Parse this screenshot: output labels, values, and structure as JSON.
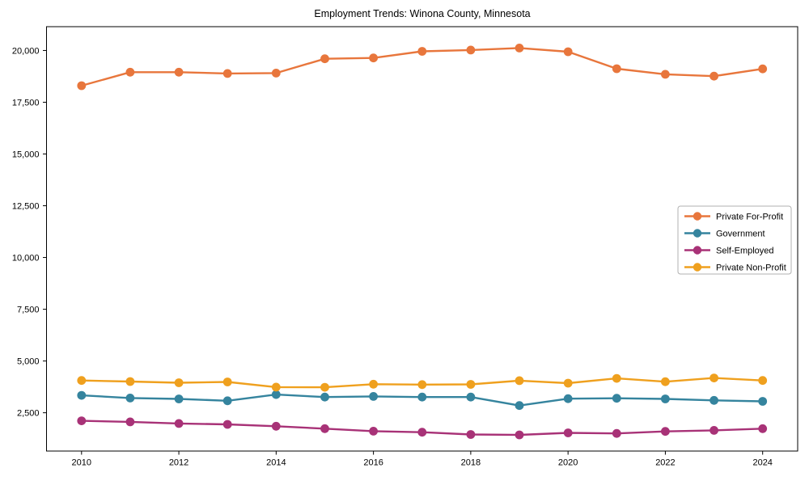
{
  "figure": {
    "background_color": "#ffffff",
    "axis_color": "#000000",
    "tick_label_color": "#000000",
    "legend_border_color": "#b0b0b0",
    "legend_background": "#ffffff"
  },
  "chart_data": {
    "type": "line",
    "title": "Employment Trends: Winona County, Minnesota",
    "xlabel": "",
    "ylabel": "",
    "grid": false,
    "marker": "circle",
    "legend_position": "center right",
    "x": [
      2010,
      2011,
      2012,
      2013,
      2014,
      2015,
      2016,
      2017,
      2018,
      2019,
      2020,
      2021,
      2022,
      2023,
      2024
    ],
    "series": [
      {
        "name": "Private For-Profit",
        "color": "#e8763c",
        "values": [
          18300,
          18950,
          18950,
          18890,
          18910,
          19600,
          19640,
          19960,
          20020,
          20120,
          19940,
          19120,
          18850,
          18760,
          19110
        ]
      },
      {
        "name": "Government",
        "color": "#35849e",
        "values": [
          3340,
          3210,
          3170,
          3080,
          3380,
          3260,
          3290,
          3260,
          3260,
          2850,
          3180,
          3200,
          3170,
          3100,
          3050
        ]
      },
      {
        "name": "Self-Employed",
        "color": "#a83277",
        "values": [
          2110,
          2060,
          1980,
          1940,
          1850,
          1730,
          1610,
          1560,
          1450,
          1430,
          1530,
          1500,
          1600,
          1650,
          1730
        ]
      },
      {
        "name": "Private Non-Profit",
        "color": "#efa01e",
        "values": [
          4060,
          4010,
          3950,
          3990,
          3740,
          3730,
          3880,
          3860,
          3870,
          4050,
          3930,
          4160,
          4000,
          4180,
          4060
        ]
      }
    ],
    "xtick_values": [
      2010,
      2012,
      2014,
      2016,
      2018,
      2020,
      2022,
      2024
    ],
    "xtick_labels": [
      "2010",
      "2012",
      "2014",
      "2016",
      "2018",
      "2020",
      "2022",
      "2024"
    ],
    "ytick_values": [
      2500,
      5000,
      7500,
      10000,
      12500,
      15000,
      17500,
      20000
    ],
    "ytick_labels": [
      "2,500",
      "5,000",
      "7,500",
      "10,000",
      "12,500",
      "15,000",
      "17,500",
      "20,000"
    ],
    "xlim": [
      2009.28,
      2024.72
    ],
    "ylim": [
      650,
      21150
    ]
  }
}
